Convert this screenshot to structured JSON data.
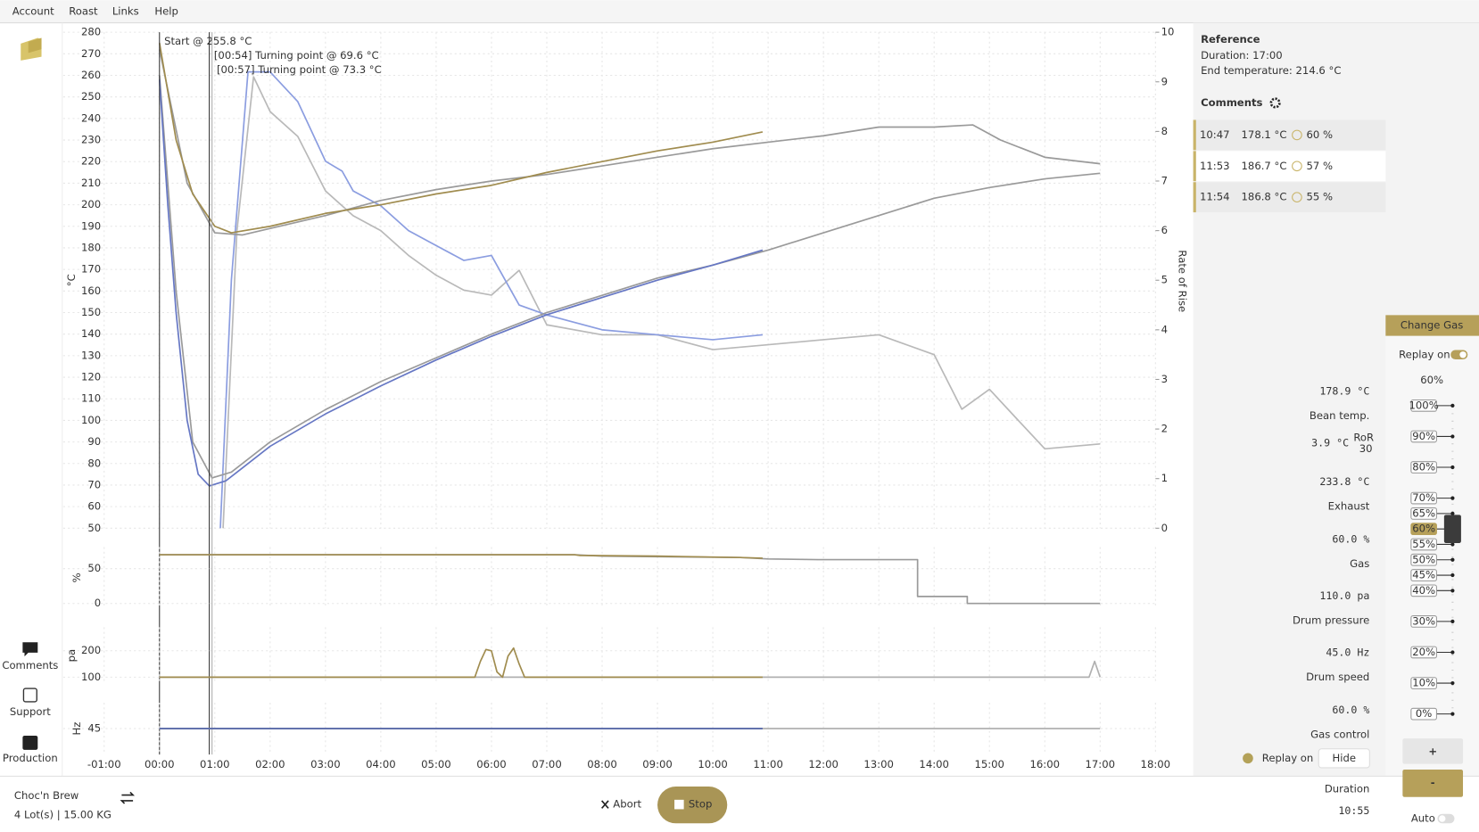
{
  "menu": [
    "Account",
    "Roast",
    "Links",
    "Help"
  ],
  "sidebar": [
    "Comments",
    "Support",
    "Production"
  ],
  "chart_data": [
    {
      "type": "line",
      "ylabel": "°C",
      "y2label": "Rate of Rise",
      "xlim": [
        -1.74,
        18
      ],
      "ylim": [
        50,
        280
      ],
      "yticks": [
        50,
        60,
        70,
        80,
        90,
        100,
        110,
        120,
        130,
        140,
        150,
        160,
        170,
        180,
        190,
        200,
        210,
        220,
        230,
        240,
        250,
        260,
        270,
        280
      ],
      "y2lim": [
        0,
        10
      ],
      "y2ticks": [
        0,
        1,
        2,
        3,
        4,
        5,
        6,
        7,
        8,
        9,
        10
      ],
      "grid": true,
      "annotations": [
        {
          "text": "Start @ 255.8 °C",
          "x": 0,
          "color": "#333333"
        },
        {
          "text": "[00:54] Turning point @ 69.6 °C",
          "x": 0.9,
          "color": "#333333"
        },
        {
          "text": "[00:57] Turning point @ 73.3 °C",
          "x": 0.95,
          "color": "#aaaaaa"
        }
      ],
      "series": [
        {
          "color": "#b9b9b9",
          "axis": "y2",
          "x": [
            1.15,
            1.4,
            1.7,
            2,
            2.5,
            3,
            3.5,
            4,
            4.5,
            5,
            5.5,
            6,
            6.5,
            7,
            8,
            9,
            10,
            11,
            12,
            13,
            14,
            14.5,
            15,
            15.5,
            16,
            17
          ],
          "values": [
            0,
            6,
            9.1,
            8.4,
            7.9,
            6.8,
            6.3,
            6.0,
            5.5,
            5.1,
            4.8,
            4.7,
            5.2,
            4.1,
            3.9,
            3.9,
            3.6,
            3.7,
            3.8,
            3.9,
            3.5,
            2.4,
            2.8,
            2.2,
            1.6,
            1.7
          ]
        },
        {
          "color": "#8b9de0",
          "axis": "y2",
          "x": [
            1.1,
            1.3,
            1.6,
            2,
            2.5,
            3,
            3.3,
            3.5,
            4,
            4.5,
            5,
            5.5,
            6,
            6.3,
            6.5,
            7,
            8,
            9,
            10,
            10.9
          ],
          "values": [
            0,
            5,
            9.2,
            9.2,
            8.6,
            7.4,
            7.2,
            6.8,
            6.5,
            6.0,
            5.7,
            5.4,
            5.5,
            4.9,
            4.5,
            4.3,
            4.0,
            3.9,
            3.8,
            3.9
          ]
        },
        {
          "color": "#9a9a9a",
          "x": [
            0,
            0.3,
            0.6,
            0.95,
            1.3,
            2,
            3,
            4,
            5,
            6,
            7,
            8,
            9,
            10,
            11,
            12,
            13,
            14,
            15,
            16,
            17
          ],
          "values": [
            260,
            160,
            90,
            73.3,
            76,
            90,
            105,
            118,
            129,
            140,
            150,
            158,
            166,
            172,
            179,
            187,
            195,
            203,
            208,
            212,
            214.6
          ]
        },
        {
          "color": "#9a9a9a",
          "x": [
            0,
            0.5,
            1,
            1.5,
            2,
            3,
            4,
            5,
            6,
            7,
            8,
            9,
            10,
            11,
            12,
            13,
            14,
            14.7,
            15.2,
            16,
            17
          ],
          "values": [
            272,
            210,
            187,
            186,
            189,
            195,
            202,
            207,
            211,
            214,
            218,
            222,
            226,
            229,
            232,
            236,
            236,
            237,
            230,
            222,
            219
          ]
        },
        {
          "color": "#6677c4",
          "x": [
            0,
            0.15,
            0.3,
            0.5,
            0.7,
            0.9,
            1.2,
            1.5,
            2,
            3,
            4,
            5,
            6,
            7,
            8,
            9,
            10,
            10.9
          ],
          "values": [
            258,
            200,
            150,
            100,
            75,
            69.6,
            72,
            78,
            88,
            103,
            116,
            128,
            139,
            149,
            157,
            165,
            172,
            179
          ]
        },
        {
          "color": "#a08c4f",
          "x": [
            0,
            0.3,
            0.6,
            1,
            1.3,
            2,
            3,
            4,
            5,
            6,
            7,
            8,
            9,
            10,
            10.9
          ],
          "values": [
            275,
            230,
            205,
            190,
            187,
            190,
            196,
            200,
            205,
            209,
            215,
            220,
            225,
            229,
            233.8
          ]
        }
      ]
    },
    {
      "type": "line",
      "ylabel": "%",
      "xlim": [
        -1.74,
        18
      ],
      "ylim": [
        -7,
        81
      ],
      "yticks": [
        0,
        50
      ],
      "grid": true,
      "series": [
        {
          "color": "#9a9a9a",
          "x": [
            0,
            7.5,
            8,
            9.2,
            10.5,
            11,
            11.9,
            13.7,
            13.7,
            14.6,
            14.6,
            17
          ],
          "values": [
            70,
            70,
            68,
            67,
            66,
            64,
            63,
            63,
            10,
            10,
            0,
            0
          ]
        },
        {
          "color": "#a08c4f",
          "x": [
            0,
            7.5,
            7.6,
            9,
            10.5,
            10.9
          ],
          "values": [
            70,
            70,
            69,
            68,
            66,
            65
          ]
        }
      ]
    },
    {
      "type": "line",
      "ylabel": "pa",
      "xlim": [
        -1.74,
        18
      ],
      "ylim": [
        75,
        289
      ],
      "yticks": [
        100,
        200
      ],
      "grid": true,
      "series": [
        {
          "color": "#b0b0b0",
          "x": [
            0,
            16.8,
            16.9,
            17
          ],
          "values": [
            100,
            100,
            160,
            100
          ]
        },
        {
          "color": "#a08c4f",
          "x": [
            0,
            5.7,
            5.8,
            5.9,
            6.0,
            6.1,
            6.2,
            6.3,
            6.4,
            6.5,
            6.6,
            10.9
          ],
          "values": [
            100,
            100,
            160,
            205,
            200,
            120,
            100,
            180,
            210,
            150,
            100,
            100
          ]
        }
      ]
    },
    {
      "type": "line",
      "ylabel": "Hz",
      "xlim": [
        -1.74,
        18
      ],
      "ylim": [
        30,
        60
      ],
      "yticks": [
        45
      ],
      "grid": true,
      "xticks": [
        {
          "value": -1,
          "label": "-01:00"
        },
        {
          "value": 0,
          "label": "00:00"
        },
        {
          "value": 1,
          "label": "01:00"
        },
        {
          "value": 2,
          "label": "02:00"
        },
        {
          "value": 3,
          "label": "03:00"
        },
        {
          "value": 4,
          "label": "04:00"
        },
        {
          "value": 5,
          "label": "05:00"
        },
        {
          "value": 6,
          "label": "06:00"
        },
        {
          "value": 7,
          "label": "07:00"
        },
        {
          "value": 8,
          "label": "08:00"
        },
        {
          "value": 9,
          "label": "09:00"
        },
        {
          "value": 10,
          "label": "10:00"
        },
        {
          "value": 11,
          "label": "11:00"
        },
        {
          "value": 12,
          "label": "12:00"
        },
        {
          "value": 13,
          "label": "13:00"
        },
        {
          "value": 14,
          "label": "14:00"
        },
        {
          "value": 15,
          "label": "15:00"
        },
        {
          "value": 16,
          "label": "16:00"
        },
        {
          "value": 17,
          "label": "17:00"
        },
        {
          "value": 18,
          "label": "18:00"
        }
      ],
      "series": [
        {
          "color": "#b0b0b0",
          "x": [
            0,
            17
          ],
          "values": [
            45,
            45
          ]
        },
        {
          "color": "#5566aa",
          "x": [
            0,
            10.9
          ],
          "values": [
            45,
            45
          ]
        }
      ]
    }
  ],
  "reference": {
    "title": "Reference",
    "duration": "Duration: 17:00",
    "end_temperature": "End temperature: 214.6 °C"
  },
  "comments": {
    "title": "Comments",
    "rows": [
      {
        "time": "10:47",
        "temp": "178.1 °C",
        "gas": "60 %"
      },
      {
        "time": "11:53",
        "temp": "186.7 °C",
        "gas": "57 %"
      },
      {
        "time": "11:54",
        "temp": "186.8 °C",
        "gas": "55 %"
      }
    ]
  },
  "readings": [
    {
      "value": "178.9 °C",
      "label": "Bean temp.",
      "color": "#4d68b8"
    },
    {
      "value": "3.9 °C",
      "label": "RoR",
      "window": "30",
      "color": "#4d68b8"
    },
    {
      "value": "233.8 °C",
      "label": "Exhaust",
      "color": "#9a864a"
    },
    {
      "value": "60.0 %",
      "label": "Gas",
      "color": "#dcc059"
    },
    {
      "value": "110.0 pa",
      "label": "Drum pressure",
      "color": "#9a864a"
    },
    {
      "value": "45.0 Hz",
      "label": "Drum speed",
      "color": "#3f5394"
    },
    {
      "value": "60.0 %",
      "label": "Gas control",
      "color": "#111111"
    }
  ],
  "replay": {
    "label": "Replay on",
    "hide": "Hide"
  },
  "gas_panel": {
    "title": "Change Gas",
    "replay": "Replay on",
    "value": 60,
    "value_label": "60%",
    "ticks": [
      {
        "value": 100,
        "label": "100%"
      },
      {
        "value": 90,
        "label": "90%"
      },
      {
        "value": 80,
        "label": "80%"
      },
      {
        "value": 70,
        "label": "70%"
      },
      {
        "value": 65,
        "label": "65%"
      },
      {
        "value": 60,
        "label": "60%"
      },
      {
        "value": 55,
        "label": "55%"
      },
      {
        "value": 50,
        "label": "50%"
      },
      {
        "value": 45,
        "label": "45%"
      },
      {
        "value": 40,
        "label": "40%"
      },
      {
        "value": 30,
        "label": "30%"
      },
      {
        "value": 20,
        "label": "20%"
      },
      {
        "value": 10,
        "label": "10%"
      },
      {
        "value": 0,
        "label": "0%"
      }
    ],
    "plus": "+",
    "minus": "-",
    "auto": "Auto"
  },
  "footer": {
    "name": "Choc'n Brew",
    "lots": "4 Lot(s) | 15.00 KG",
    "abort": "Abort",
    "stop": "Stop",
    "duration_label": "Duration",
    "duration": "10:55"
  }
}
